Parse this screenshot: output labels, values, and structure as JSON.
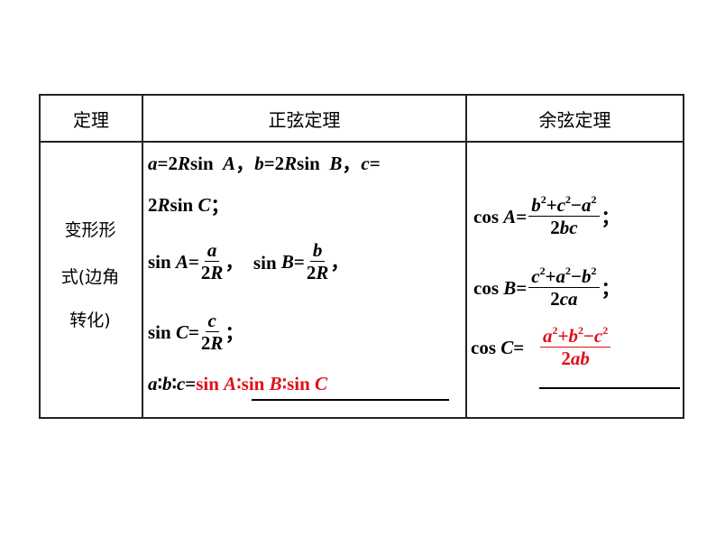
{
  "table": {
    "headers": [
      "定理",
      "正弦定理",
      "余弦定理"
    ],
    "row_label_lines": [
      "变形形",
      "式(边角",
      "转化)"
    ],
    "sine": [
      [
        {
          "t": "a",
          "i": 1
        },
        {
          "t": "=2"
        },
        {
          "t": "R",
          "i": 1
        },
        {
          "t": "sin  "
        },
        {
          "t": "A",
          "i": 1
        },
        {
          "t": "，"
        },
        {
          "t": "b",
          "i": 1
        },
        {
          "t": "=2"
        },
        {
          "t": "R",
          "i": 1
        },
        {
          "t": "sin  "
        },
        {
          "t": "B",
          "i": 1
        },
        {
          "t": "，"
        },
        {
          "t": "c",
          "i": 1
        },
        {
          "t": "="
        }
      ],
      [
        {
          "t": "2"
        },
        {
          "t": "R",
          "i": 1
        },
        {
          "t": "sin "
        },
        {
          "t": "C",
          "i": 1
        },
        {
          "t": "；"
        }
      ],
      [
        {
          "t": "sin "
        },
        {
          "t": "A",
          "i": 1
        },
        {
          "t": "="
        },
        {
          "frac": [
            [
              {
                "t": "a",
                "i": 1
              }
            ],
            [
              {
                "t": "2"
              },
              {
                "t": "R",
                "i": 1
              }
            ]
          ]
        },
        {
          "t": "，  sin "
        },
        {
          "t": "B",
          "i": 1
        },
        {
          "t": "="
        },
        {
          "frac": [
            [
              {
                "t": "b",
                "i": 1
              }
            ],
            [
              {
                "t": "2"
              },
              {
                "t": "R",
                "i": 1
              }
            ]
          ]
        },
        {
          "t": "，"
        }
      ],
      [
        {
          "t": "sin "
        },
        {
          "t": "C",
          "i": 1
        },
        {
          "t": "="
        },
        {
          "frac": [
            [
              {
                "t": "c",
                "i": 1
              }
            ],
            [
              {
                "t": "2"
              },
              {
                "t": "R",
                "i": 1
              }
            ]
          ]
        },
        {
          "t": "；"
        }
      ],
      [
        {
          "t": "a",
          "i": 1
        },
        {
          "t": "∶"
        },
        {
          "t": "b",
          "i": 1
        },
        {
          "t": "∶"
        },
        {
          "t": "c",
          "i": 1
        },
        {
          "t": "="
        },
        {
          "t": "sin ",
          "red": 1
        },
        {
          "t": "A",
          "i": 1,
          "red": 1
        },
        {
          "t": "∶sin ",
          "red": 1
        },
        {
          "t": "B",
          "i": 1,
          "red": 1
        },
        {
          "t": "∶sin ",
          "red": 1
        },
        {
          "t": "C",
          "i": 1,
          "red": 1
        }
      ]
    ],
    "cosine": [
      [
        {
          "t": "cos "
        },
        {
          "t": "A",
          "i": 1
        },
        {
          "t": "="
        },
        {
          "frac": [
            [
              {
                "t": "b",
                "i": 1
              },
              {
                "sup": "2"
              },
              {
                "t": "+"
              },
              {
                "t": "c",
                "i": 1
              },
              {
                "sup": "2"
              },
              {
                "t": "−"
              },
              {
                "t": "a",
                "i": 1
              },
              {
                "sup": "2"
              }
            ],
            [
              {
                "t": "2"
              },
              {
                "t": "bc",
                "i": 1
              }
            ]
          ]
        },
        {
          "t": "；"
        }
      ],
      [
        {
          "t": "cos "
        },
        {
          "t": "B",
          "i": 1
        },
        {
          "t": "="
        },
        {
          "frac": [
            [
              {
                "t": "c",
                "i": 1
              },
              {
                "sup": "2"
              },
              {
                "t": "+"
              },
              {
                "t": "a",
                "i": 1
              },
              {
                "sup": "2"
              },
              {
                "t": "−"
              },
              {
                "t": "b",
                "i": 1
              },
              {
                "sup": "2"
              }
            ],
            [
              {
                "t": "2"
              },
              {
                "t": "ca",
                "i": 1
              }
            ]
          ]
        },
        {
          "t": "；"
        }
      ],
      [
        {
          "t": "cos "
        },
        {
          "t": "C",
          "i": 1
        },
        {
          "t": "=   "
        },
        {
          "frac": [
            [
              {
                "t": "a",
                "i": 1
              },
              {
                "sup": "2"
              },
              {
                "t": "+"
              },
              {
                "t": "b",
                "i": 1
              },
              {
                "sup": "2"
              },
              {
                "t": "−"
              },
              {
                "t": "c",
                "i": 1
              },
              {
                "sup": "2"
              }
            ],
            [
              {
                "t": "2"
              },
              {
                "t": "ab",
                "i": 1
              }
            ]
          ],
          "red": 1
        }
      ]
    ]
  },
  "colors": {
    "answer": "#e0101a"
  }
}
